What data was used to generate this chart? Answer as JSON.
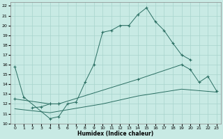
{
  "xlabel": "Humidex (Indice chaleur)",
  "bg_color": "#c8eae4",
  "grid_color": "#a8d4cc",
  "line_color": "#2a6e62",
  "xlim": [
    -0.5,
    23.5
  ],
  "ylim": [
    10,
    22.4
  ],
  "xticks": [
    0,
    1,
    2,
    3,
    4,
    5,
    6,
    7,
    8,
    9,
    10,
    11,
    12,
    13,
    14,
    15,
    16,
    17,
    18,
    19,
    20,
    21,
    22,
    23
  ],
  "yticks": [
    10,
    11,
    12,
    13,
    14,
    15,
    16,
    17,
    18,
    19,
    20,
    21,
    22
  ],
  "series": [
    {
      "x": [
        0,
        1,
        4,
        5,
        6,
        7,
        8,
        9,
        10,
        11,
        12,
        13,
        14,
        15,
        16,
        17,
        18,
        19,
        20
      ],
      "y": [
        15.8,
        12.7,
        10.5,
        10.7,
        12.0,
        12.2,
        14.2,
        16.0,
        19.3,
        19.5,
        20.0,
        20.0,
        21.1,
        21.8,
        20.4,
        19.5,
        18.2,
        17.0,
        16.5
      ],
      "has_marker": true
    },
    {
      "x": [
        2,
        3,
        4,
        5
      ],
      "y": [
        11.6,
        11.7,
        12.0,
        12.0
      ],
      "has_marker": true
    },
    {
      "x": [
        0,
        4,
        5,
        14,
        19,
        20,
        21,
        22,
        23
      ],
      "y": [
        12.5,
        12.0,
        12.0,
        14.5,
        16.0,
        15.5,
        14.2,
        14.8,
        13.3
      ],
      "has_marker": true
    },
    {
      "x": [
        0,
        4,
        10,
        14,
        19,
        23
      ],
      "y": [
        11.5,
        11.1,
        12.0,
        12.8,
        13.5,
        13.2
      ],
      "has_marker": false
    }
  ]
}
